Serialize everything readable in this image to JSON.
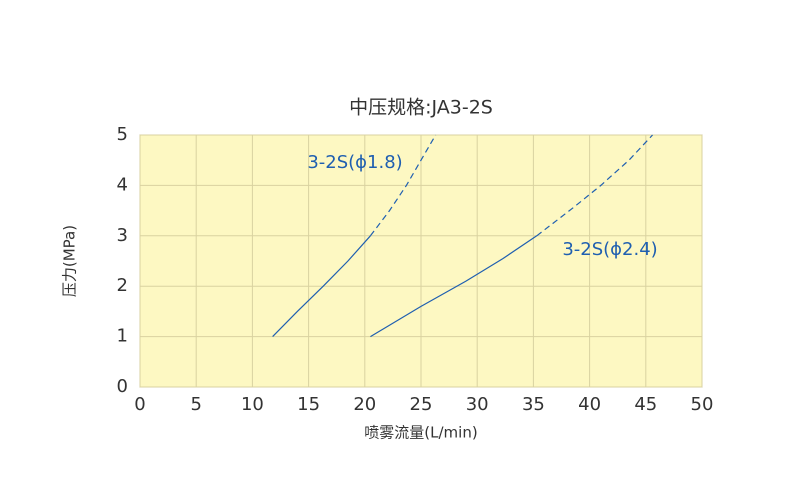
{
  "chart_data": {
    "type": "line",
    "title": "中压规格:JA3-2S",
    "xlabel": "喷雾流量(L/min)",
    "ylabel": "压力(MPa)",
    "xlim": [
      0,
      50
    ],
    "xticks": [
      0,
      5,
      10,
      15,
      20,
      25,
      30,
      35,
      40,
      45,
      50
    ],
    "ylim": [
      0,
      5
    ],
    "yticks": [
      0,
      1,
      2,
      3,
      4,
      5
    ],
    "grid": true,
    "background": "#fdf8c2",
    "series": [
      {
        "name": "3-2S(ϕ1.8)",
        "color": "#1f5fb0",
        "solid": {
          "x": [
            11.8,
            14,
            16.3,
            18.5,
            20.5
          ],
          "values": [
            1,
            1.5,
            2,
            2.5,
            3
          ]
        },
        "dashed": {
          "x": [
            20.5,
            22.2,
            23.7,
            25,
            26.3
          ],
          "values": [
            3,
            3.5,
            4,
            4.5,
            5
          ]
        }
      },
      {
        "name": "3-2S(ϕ2.4)",
        "color": "#1f5fb0",
        "solid": {
          "x": [
            20.5,
            25,
            29,
            32.3,
            35.3
          ],
          "values": [
            1,
            1.6,
            2.1,
            2.55,
            3
          ]
        },
        "dashed": {
          "x": [
            35.3,
            38.5,
            41,
            43.5,
            45.6
          ],
          "values": [
            3,
            3.55,
            4,
            4.5,
            5
          ]
        }
      }
    ]
  }
}
